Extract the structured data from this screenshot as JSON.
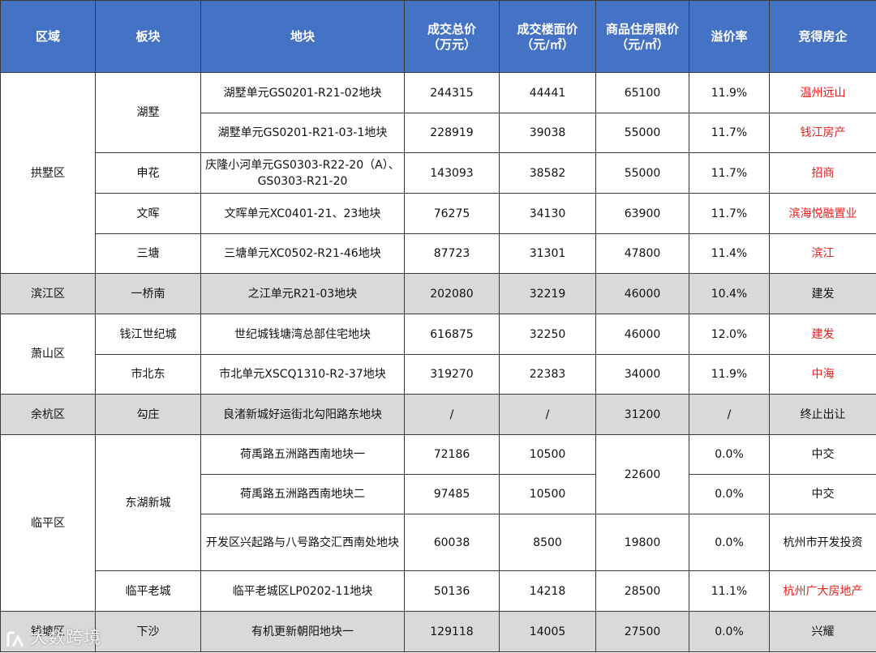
{
  "headers": {
    "district": "区域",
    "block": "板块",
    "parcel": "地块",
    "total_price": "成交总价",
    "total_price_unit": "（万元）",
    "floor_price": "成交楼面价",
    "floor_price_unit": "（元/㎡）",
    "limit_price": "商品住房限价",
    "limit_price_unit": "（元/㎡）",
    "premium": "溢价率",
    "winner": "竞得房企"
  },
  "districts": {
    "gongshu": "拱墅区",
    "binjiang": "滨江区",
    "xiaoshan": "萧山区",
    "yuhang": "余杭区",
    "linping": "临平区",
    "qiantang": "钱塘区"
  },
  "blocks": {
    "hushu": "湖墅",
    "shenhua": "申花",
    "wenhui": "文晖",
    "santang": "三塘",
    "yiqiaonan": "一桥南",
    "qjsjc": "钱江世纪城",
    "shibeidong": "市北东",
    "gouzhuang": "勾庄",
    "donghu": "东湖新城",
    "linpinglaocheng": "临平老城",
    "xiasha": "下沙"
  },
  "rows": [
    {
      "parcel": "湖墅单元GS0201-R21-02地块",
      "total": "244315",
      "floor": "44441",
      "limit": "65100",
      "premium": "11.9%",
      "winner": "温州远山",
      "winner_color": "#e8201b"
    },
    {
      "parcel": "湖墅单元GS0201-R21-03-1地块",
      "total": "228919",
      "floor": "39038",
      "limit": "55000",
      "premium": "11.7%",
      "winner": "钱江房产",
      "winner_color": "#e8201b"
    },
    {
      "parcel": "庆隆小河单元GS0303-R22-20（A）、GS0303-R21-20",
      "total": "143093",
      "floor": "38582",
      "limit": "55000",
      "premium": "11.7%",
      "winner": "招商",
      "winner_color": "#e8201b"
    },
    {
      "parcel": "文晖单元XC0401-21、23地块",
      "total": "76275",
      "floor": "34130",
      "limit": "63900",
      "premium": "11.7%",
      "winner": "滨海悦融置业",
      "winner_color": "#e8201b"
    },
    {
      "parcel": "三塘单元XC0502-R21-46地块",
      "total": "87723",
      "floor": "31301",
      "limit": "47800",
      "premium": "11.4%",
      "winner": "滨江",
      "winner_color": "#e8201b"
    },
    {
      "parcel": "之江单元R21-03地块",
      "total": "202080",
      "floor": "32219",
      "limit": "46000",
      "premium": "10.4%",
      "winner": "建发",
      "winner_color": "#111111"
    },
    {
      "parcel": "世纪城钱塘湾总部住宅地块",
      "total": "616875",
      "floor": "32250",
      "limit": "46000",
      "premium": "12.0%",
      "winner": "建发",
      "winner_color": "#e8201b"
    },
    {
      "parcel": "市北单元XSCQ1310-R2-37地块",
      "total": "319270",
      "floor": "22383",
      "limit": "34000",
      "premium": "11.9%",
      "winner": "中海",
      "winner_color": "#e8201b"
    },
    {
      "parcel": "良渚新城好运街北勾阳路东地块",
      "total": "/",
      "floor": "/",
      "limit": "31200",
      "premium": "/",
      "winner": "终止出让",
      "winner_color": "#111111"
    },
    {
      "parcel": "荷禹路五洲路西南地块一",
      "total": "72186",
      "floor": "10500",
      "limit": "22600",
      "premium": "0.0%",
      "winner": "中交",
      "winner_color": "#111111"
    },
    {
      "parcel": "荷禹路五洲路西南地块二",
      "total": "97485",
      "floor": "10500",
      "limit": "",
      "premium": "0.0%",
      "winner": "中交",
      "winner_color": "#111111"
    },
    {
      "parcel": "开发区兴起路与八号路交汇西南处地块",
      "total": "60038",
      "floor": "8500",
      "limit": "19800",
      "premium": "0.0%",
      "winner": "杭州市开发投资",
      "winner_color": "#111111"
    },
    {
      "parcel": "临平老城区LP0202-11地块",
      "total": "50136",
      "floor": "14218",
      "limit": "28500",
      "premium": "11.1%",
      "winner": "杭州广大房地产",
      "winner_color": "#e8201b"
    },
    {
      "parcel": "有机更新朝阳地块一",
      "total": "129118",
      "floor": "14005",
      "limit": "27500",
      "premium": "0.0%",
      "winner": "兴耀",
      "winner_color": "#111111"
    }
  ],
  "watermark": "大数跨境"
}
